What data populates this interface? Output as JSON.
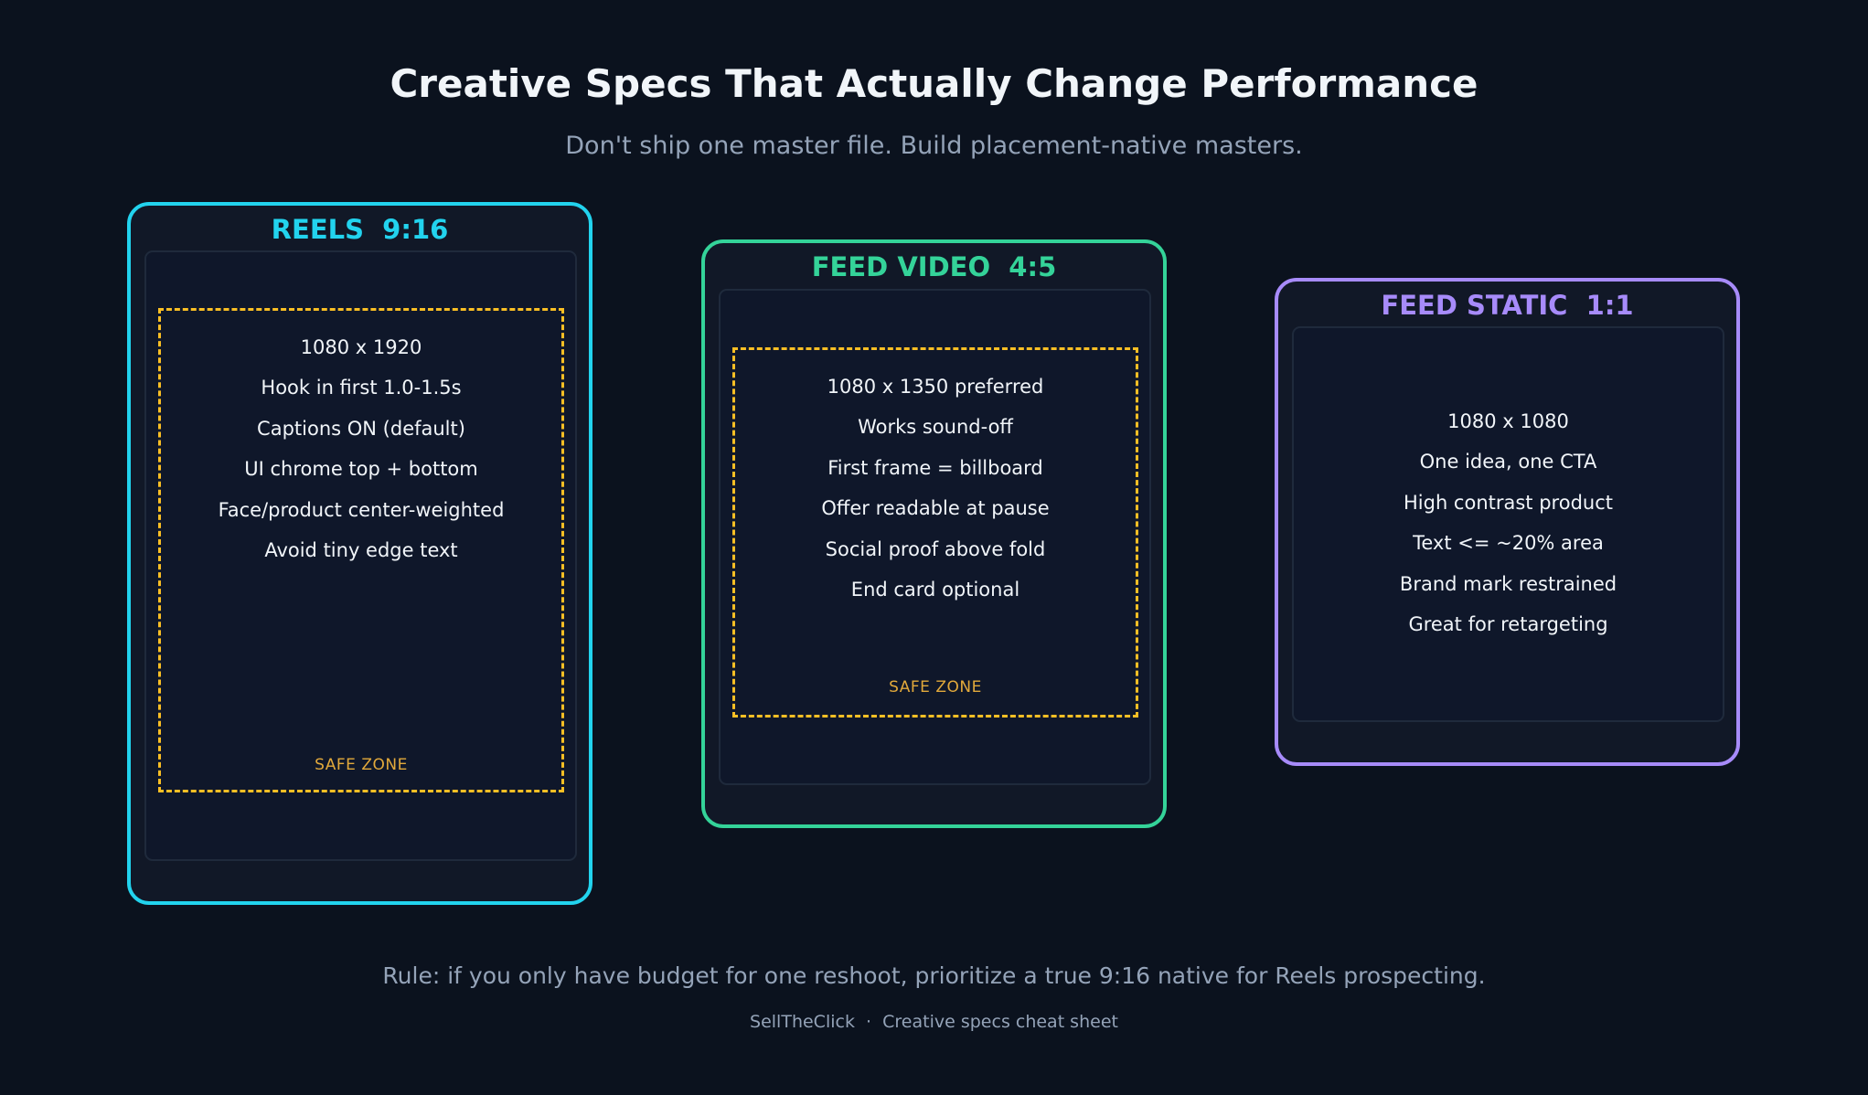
{
  "header": {
    "title": "Creative Specs That Actually Change Performance",
    "subtitle": "Don't ship one master file. Build placement-native masters."
  },
  "colors": {
    "reels": "#22d3ee",
    "feed_video": "#34d399",
    "feed_static": "#a78bfa",
    "safe_zone": "#fbbf24",
    "background": "#0b121e"
  },
  "cards": [
    {
      "title": "REELS  9:16",
      "specs": [
        "1080 x 1920",
        "Hook in first 1.0-1.5s",
        "Captions ON (default)",
        "UI chrome top + bottom",
        "Face/product center-weighted",
        "Avoid tiny edge text"
      ],
      "safe_label": "SAFE ZONE"
    },
    {
      "title": "FEED VIDEO  4:5",
      "specs": [
        "1080 x 1350 preferred",
        "Works sound-off",
        "First frame = billboard",
        "Offer readable at pause",
        "Social proof above fold",
        "End card optional"
      ],
      "safe_label": "SAFE ZONE"
    },
    {
      "title": "FEED STATIC  1:1",
      "specs": [
        "1080 x 1080",
        "One idea, one CTA",
        "High contrast product",
        "Text <= ~20% area",
        "Brand mark restrained",
        "Great for retargeting"
      ]
    }
  ],
  "rule": "Rule: if you only have budget for one reshoot, prioritize a true 9:16 native for Reels prospecting.",
  "footer": "SellTheClick  ·  Creative specs cheat sheet"
}
